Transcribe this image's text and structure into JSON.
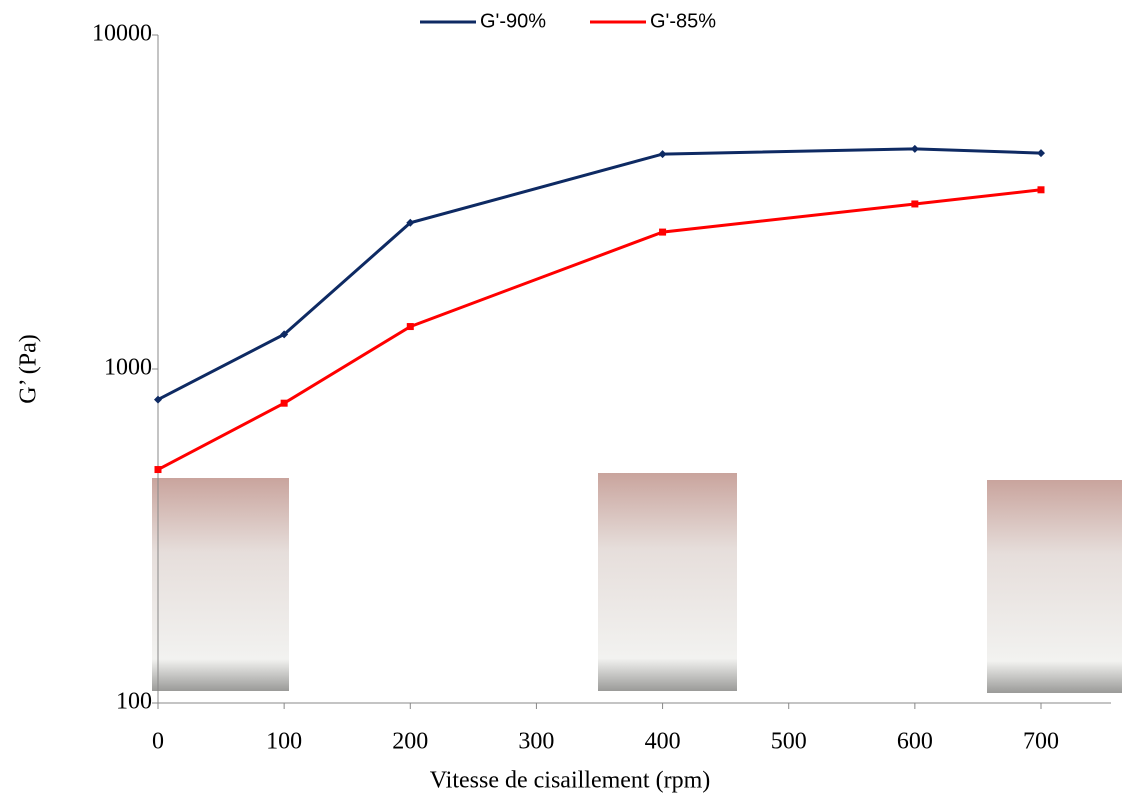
{
  "chart_data": {
    "type": "line",
    "x": [
      0,
      100,
      200,
      400,
      600,
      700
    ],
    "series": [
      {
        "name": "G'-90%",
        "color": "#0e2a63",
        "values": [
          810,
          1270,
          2740,
          4400,
          4560,
          4430
        ]
      },
      {
        "name": "G'-85%",
        "color": "#ff0000",
        "values": [
          500,
          790,
          1340,
          2570,
          3120,
          3440
        ]
      }
    ],
    "xlabel": "Vitesse de cisaillement (rpm)",
    "ylabel": "G’ (Pa)",
    "xlim": [
      0,
      700
    ],
    "xticks": [
      0,
      100,
      200,
      300,
      400,
      500,
      600,
      700
    ],
    "ylim": [
      100,
      10000
    ],
    "yticks": [
      100,
      1000,
      10000
    ],
    "log_y": true,
    "legend": "top"
  }
}
